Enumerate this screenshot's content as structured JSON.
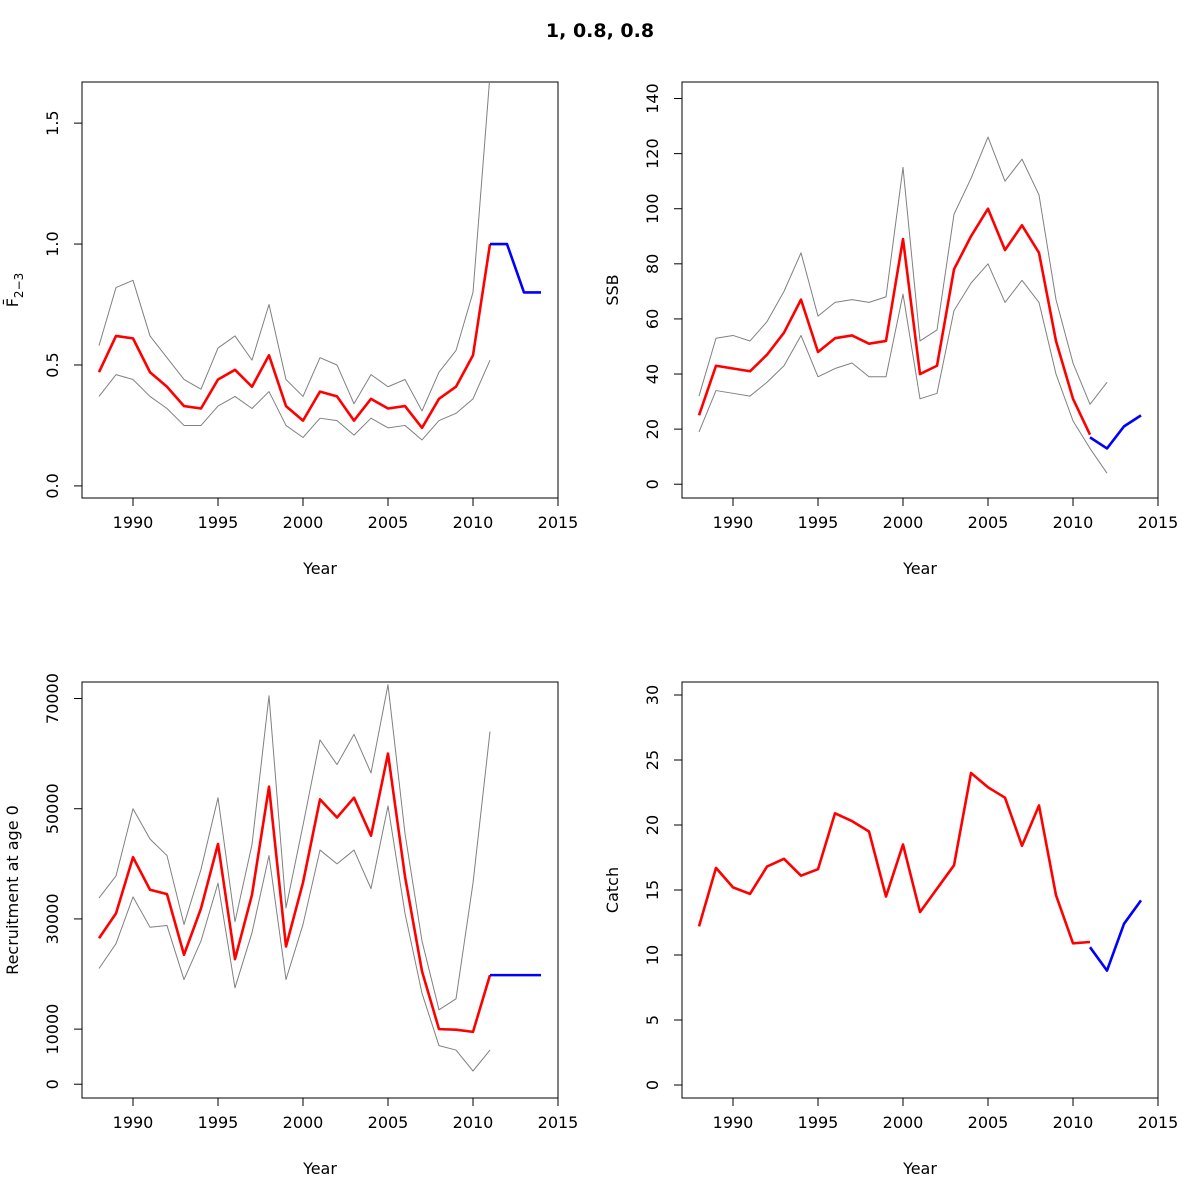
{
  "title": "1, 0.8, 0.8",
  "colors": {
    "estimate": "#ff0000",
    "projection": "#0000ff",
    "bounds": "#808080"
  },
  "chart_data": [
    {
      "type": "line",
      "id": "fbar",
      "xlabel": "Year",
      "ylabel": "F̄",
      "ylabel_sub": "2−3",
      "xlim": [
        1987,
        2015
      ],
      "ylim": [
        -0.05,
        1.67
      ],
      "xticks": [
        1990,
        1995,
        2000,
        2005,
        2010,
        2015
      ],
      "yticks": [
        0.0,
        0.5,
        1.0,
        1.5
      ],
      "ytick_labels": [
        "0.0",
        "0.5",
        "1.0",
        "1.5"
      ],
      "series": [
        {
          "role": "upper",
          "x": [
            1988,
            1989,
            1990,
            1991,
            1992,
            1993,
            1994,
            1995,
            1996,
            1997,
            1998,
            1999,
            2000,
            2001,
            2002,
            2003,
            2004,
            2005,
            2006,
            2007,
            2008,
            2009,
            2010,
            2011
          ],
          "y": [
            0.58,
            0.82,
            0.85,
            0.62,
            0.53,
            0.44,
            0.4,
            0.57,
            0.62,
            0.52,
            0.75,
            0.44,
            0.37,
            0.53,
            0.5,
            0.34,
            0.46,
            0.41,
            0.44,
            0.31,
            0.47,
            0.56,
            0.8,
            1.7
          ]
        },
        {
          "role": "lower",
          "x": [
            1988,
            1989,
            1990,
            1991,
            1992,
            1993,
            1994,
            1995,
            1996,
            1997,
            1998,
            1999,
            2000,
            2001,
            2002,
            2003,
            2004,
            2005,
            2006,
            2007,
            2008,
            2009,
            2010,
            2011
          ],
          "y": [
            0.37,
            0.46,
            0.44,
            0.37,
            0.32,
            0.25,
            0.25,
            0.33,
            0.37,
            0.32,
            0.39,
            0.25,
            0.2,
            0.28,
            0.27,
            0.21,
            0.28,
            0.24,
            0.25,
            0.19,
            0.27,
            0.3,
            0.36,
            0.52
          ]
        },
        {
          "role": "estimate",
          "x": [
            1988,
            1989,
            1990,
            1991,
            1992,
            1993,
            1994,
            1995,
            1996,
            1997,
            1998,
            1999,
            2000,
            2001,
            2002,
            2003,
            2004,
            2005,
            2006,
            2007,
            2008,
            2009,
            2010,
            2011
          ],
          "y": [
            0.47,
            0.62,
            0.61,
            0.47,
            0.41,
            0.33,
            0.32,
            0.44,
            0.48,
            0.41,
            0.54,
            0.33,
            0.27,
            0.39,
            0.37,
            0.27,
            0.36,
            0.32,
            0.33,
            0.24,
            0.36,
            0.41,
            0.54,
            1.0
          ]
        },
        {
          "role": "projection",
          "x": [
            2011,
            2012,
            2013,
            2014
          ],
          "y": [
            1.0,
            1.0,
            0.8,
            0.8
          ]
        }
      ]
    },
    {
      "type": "line",
      "id": "ssb",
      "xlabel": "Year",
      "ylabel": "SSB",
      "xlim": [
        1987,
        2015
      ],
      "ylim": [
        -5,
        146
      ],
      "xticks": [
        1990,
        1995,
        2000,
        2005,
        2010,
        2015
      ],
      "yticks": [
        0,
        20,
        40,
        60,
        80,
        100,
        120,
        140
      ],
      "ytick_labels": [
        "0",
        "20",
        "40",
        "60",
        "80",
        "100",
        "120",
        "140"
      ],
      "series": [
        {
          "role": "upper",
          "x": [
            1988,
            1989,
            1990,
            1991,
            1992,
            1993,
            1994,
            1995,
            1996,
            1997,
            1998,
            1999,
            2000,
            2001,
            2002,
            2003,
            2004,
            2005,
            2006,
            2007,
            2008,
            2009,
            2010,
            2011,
            2012
          ],
          "y": [
            32,
            53,
            54,
            52,
            59,
            70,
            84,
            61,
            66,
            67,
            66,
            68,
            115,
            52,
            56,
            98,
            111,
            126,
            110,
            118,
            105,
            67,
            44,
            29,
            37
          ]
        },
        {
          "role": "lower",
          "x": [
            1988,
            1989,
            1990,
            1991,
            1992,
            1993,
            1994,
            1995,
            1996,
            1997,
            1998,
            1999,
            2000,
            2001,
            2002,
            2003,
            2004,
            2005,
            2006,
            2007,
            2008,
            2009,
            2010,
            2011,
            2012
          ],
          "y": [
            19,
            34,
            33,
            32,
            37,
            43,
            54,
            39,
            42,
            44,
            39,
            39,
            69,
            31,
            33,
            63,
            73,
            80,
            66,
            74,
            66,
            40,
            23,
            13,
            4
          ]
        },
        {
          "role": "estimate",
          "x": [
            1988,
            1989,
            1990,
            1991,
            1992,
            1993,
            1994,
            1995,
            1996,
            1997,
            1998,
            1999,
            2000,
            2001,
            2002,
            2003,
            2004,
            2005,
            2006,
            2007,
            2008,
            2009,
            2010,
            2011
          ],
          "y": [
            25,
            43,
            42,
            41,
            47,
            55,
            67,
            48,
            53,
            54,
            51,
            52,
            89,
            40,
            43,
            78,
            90,
            100,
            85,
            94,
            84,
            52,
            31,
            18
          ]
        },
        {
          "role": "projection",
          "x": [
            2011,
            2012,
            2013,
            2014
          ],
          "y": [
            17,
            13,
            21,
            25
          ]
        }
      ]
    },
    {
      "type": "line",
      "id": "recruitment",
      "xlabel": "Year",
      "ylabel": "Recruitment at age 0",
      "xlim": [
        1987,
        2015
      ],
      "ylim": [
        -2500,
        73000
      ],
      "xticks": [
        1990,
        1995,
        2000,
        2005,
        2010,
        2015
      ],
      "yticks": [
        0,
        10000,
        30000,
        50000,
        70000
      ],
      "ytick_labels": [
        "0",
        "10000",
        "30000",
        "50000",
        "70000"
      ],
      "series": [
        {
          "role": "upper",
          "x": [
            1988,
            1989,
            1990,
            1991,
            1992,
            1993,
            1994,
            1995,
            1996,
            1997,
            1998,
            1999,
            2000,
            2001,
            2002,
            2003,
            2004,
            2005,
            2006,
            2007,
            2008,
            2009,
            2010,
            2011
          ],
          "y": [
            33800,
            37800,
            50000,
            44500,
            41500,
            29000,
            39000,
            52000,
            29500,
            43500,
            70500,
            32000,
            47000,
            62500,
            58000,
            63500,
            56500,
            72500,
            45500,
            26000,
            13500,
            15500,
            36500,
            64000
          ]
        },
        {
          "role": "lower",
          "x": [
            1988,
            1989,
            1990,
            1991,
            1992,
            1993,
            1994,
            1995,
            1996,
            1997,
            1998,
            1999,
            2000,
            2001,
            2002,
            2003,
            2004,
            2005,
            2006,
            2007,
            2008,
            2009,
            2010,
            2011
          ],
          "y": [
            21000,
            25500,
            34000,
            28500,
            28800,
            19000,
            26000,
            36500,
            17500,
            27500,
            41500,
            19000,
            29000,
            42500,
            40000,
            42500,
            35500,
            50500,
            31000,
            16500,
            7000,
            6200,
            2400,
            6200
          ]
        },
        {
          "role": "estimate",
          "x": [
            1988,
            1989,
            1990,
            1991,
            1992,
            1993,
            1994,
            1995,
            1996,
            1997,
            1998,
            1999,
            2000,
            2001,
            2002,
            2003,
            2004,
            2005,
            2006,
            2007,
            2008,
            2009,
            2010,
            2011
          ],
          "y": [
            26500,
            31000,
            41200,
            35300,
            34500,
            23500,
            31900,
            43600,
            22700,
            34400,
            54000,
            25000,
            36600,
            51700,
            48400,
            52000,
            45100,
            60000,
            37700,
            20500,
            10000,
            9900,
            9500,
            19800
          ]
        },
        {
          "role": "projection",
          "x": [
            2011,
            2012,
            2013,
            2014
          ],
          "y": [
            19800,
            19800,
            19800,
            19800
          ]
        }
      ]
    },
    {
      "type": "line",
      "id": "catch",
      "xlabel": "Year",
      "ylabel": "Catch",
      "xlim": [
        1987,
        2015
      ],
      "ylim": [
        -1,
        31
      ],
      "xticks": [
        1990,
        1995,
        2000,
        2005,
        2010,
        2015
      ],
      "yticks": [
        0,
        5,
        10,
        15,
        20,
        25,
        30
      ],
      "ytick_labels": [
        "0",
        "5",
        "10",
        "15",
        "20",
        "25",
        "30"
      ],
      "series": [
        {
          "role": "estimate",
          "x": [
            1988,
            1989,
            1990,
            1991,
            1992,
            1993,
            1994,
            1995,
            1996,
            1997,
            1998,
            1999,
            2000,
            2001,
            2002,
            2003,
            2004,
            2005,
            2006,
            2007,
            2008,
            2009,
            2010,
            2011
          ],
          "y": [
            12.2,
            16.7,
            15.2,
            14.7,
            16.8,
            17.4,
            16.1,
            16.6,
            20.9,
            20.3,
            19.5,
            14.5,
            18.5,
            13.3,
            15.1,
            16.9,
            24.0,
            22.9,
            22.1,
            18.4,
            21.5,
            14.6,
            10.9,
            11.0
          ]
        },
        {
          "role": "projection",
          "x": [
            2011,
            2012,
            2013,
            2014
          ],
          "y": [
            10.6,
            8.8,
            12.4,
            14.2
          ]
        }
      ]
    }
  ]
}
